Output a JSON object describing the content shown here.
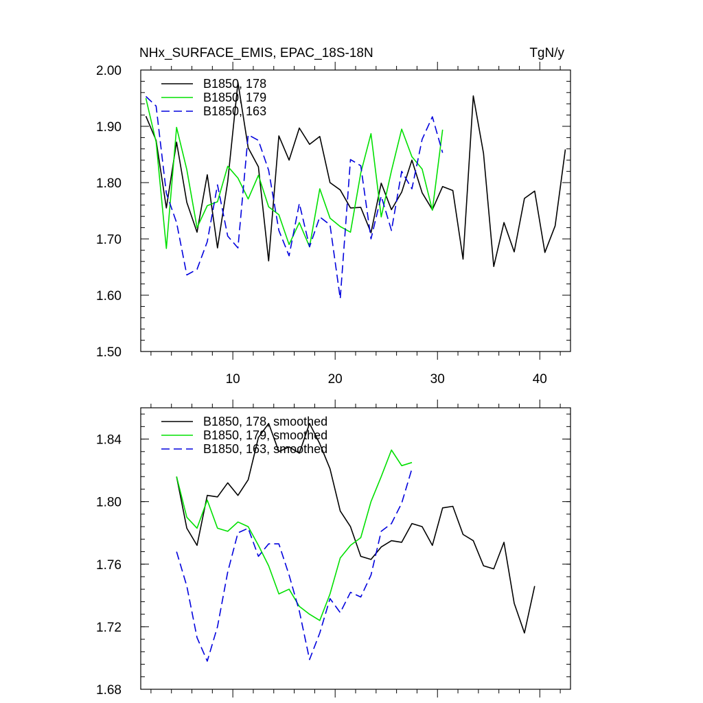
{
  "chart_data": [
    {
      "type": "line",
      "title": "NHx_SURFACE_EMIS, EPAC_18S-18N",
      "units": "TgN/y",
      "xlim": [
        1,
        43
      ],
      "ylim": [
        1.5,
        2.0
      ],
      "x_ticks": [
        10,
        20,
        30,
        40
      ],
      "y_ticks": [
        1.5,
        1.6,
        1.7,
        1.8,
        1.9,
        2.0
      ],
      "y_tick_labels": [
        "1.50",
        "1.60",
        "1.70",
        "1.80",
        "1.90",
        "2.00"
      ],
      "x_tick_labels": [
        "10",
        "20",
        "30",
        "40"
      ],
      "legend_position": "top-left",
      "series": [
        {
          "name": "B1850, 178",
          "color": "#000000",
          "dash": "solid",
          "x_start": 1.5,
          "values": [
            1.918,
            1.875,
            1.755,
            1.872,
            1.765,
            1.712,
            1.814,
            1.684,
            1.802,
            1.978,
            1.862,
            1.828,
            1.661,
            1.883,
            1.84,
            1.897,
            1.868,
            1.882,
            1.8,
            1.787,
            1.755,
            1.756,
            1.711,
            1.799,
            1.752,
            1.783,
            1.84,
            1.782,
            1.752,
            1.793,
            1.786,
            1.664,
            1.954,
            1.852,
            1.651,
            1.729,
            1.677,
            1.772,
            1.785,
            1.676,
            1.723,
            1.859
          ]
        },
        {
          "name": "B1850, 179",
          "color": "#00e000",
          "dash": "solid",
          "x_start": 1.5,
          "values": [
            1.95,
            1.872,
            1.683,
            1.898,
            1.823,
            1.72,
            1.759,
            1.766,
            1.829,
            1.808,
            1.771,
            1.813,
            1.757,
            1.743,
            1.69,
            1.729,
            1.686,
            1.789,
            1.737,
            1.722,
            1.712,
            1.817,
            1.887,
            1.739,
            1.821,
            1.895,
            1.846,
            1.824,
            1.751,
            1.894
          ]
        },
        {
          "name": "B1850, 163",
          "color": "#0000dd",
          "dash": "dashed",
          "x_start": 1.5,
          "values": [
            1.953,
            1.936,
            1.781,
            1.729,
            1.636,
            1.646,
            1.695,
            1.796,
            1.705,
            1.684,
            1.885,
            1.875,
            1.822,
            1.715,
            1.67,
            1.763,
            1.686,
            1.739,
            1.725,
            1.594,
            1.841,
            1.83,
            1.7,
            1.776,
            1.715,
            1.82,
            1.789,
            1.877,
            1.917,
            1.853
          ]
        }
      ]
    },
    {
      "type": "line",
      "xlim": [
        1,
        43
      ],
      "ylim": [
        1.68,
        1.86
      ],
      "x_ticks": [
        10,
        20,
        30,
        40
      ],
      "y_ticks": [
        1.68,
        1.72,
        1.76,
        1.8,
        1.84
      ],
      "y_tick_labels": [
        "1.68",
        "1.72",
        "1.76",
        "1.80",
        "1.84"
      ],
      "legend_position": "top-left",
      "series": [
        {
          "name": "B1850, 178, smoothed",
          "color": "#000000",
          "dash": "solid",
          "x_start": 4.5,
          "values": [
            1.816,
            1.783,
            1.772,
            1.804,
            1.803,
            1.812,
            1.804,
            1.814,
            1.841,
            1.85,
            1.832,
            1.835,
            1.831,
            1.85,
            1.837,
            1.821,
            1.794,
            1.784,
            1.765,
            1.763,
            1.771,
            1.775,
            1.774,
            1.786,
            1.784,
            1.772,
            1.796,
            1.797,
            1.779,
            1.775,
            1.759,
            1.757,
            1.774,
            1.735,
            1.716,
            1.746
          ]
        },
        {
          "name": "B1850, 179, smoothed",
          "color": "#00e000",
          "dash": "solid",
          "x_start": 4.5,
          "values": [
            1.816,
            1.79,
            1.783,
            1.801,
            1.783,
            1.781,
            1.787,
            1.784,
            1.772,
            1.759,
            1.741,
            1.744,
            1.733,
            1.728,
            1.724,
            1.741,
            1.764,
            1.772,
            1.777,
            1.8,
            1.816,
            1.833,
            1.823,
            1.825
          ]
        },
        {
          "name": "B1850, 163, smoothed",
          "color": "#0000dd",
          "dash": "dashed",
          "x_start": 4.5,
          "values": [
            1.768,
            1.746,
            1.713,
            1.698,
            1.72,
            1.755,
            1.78,
            1.783,
            1.765,
            1.773,
            1.773,
            1.753,
            1.73,
            1.699,
            1.716,
            1.738,
            1.729,
            1.742,
            1.739,
            1.753,
            1.781,
            1.786,
            1.799,
            1.821
          ]
        }
      ]
    }
  ]
}
